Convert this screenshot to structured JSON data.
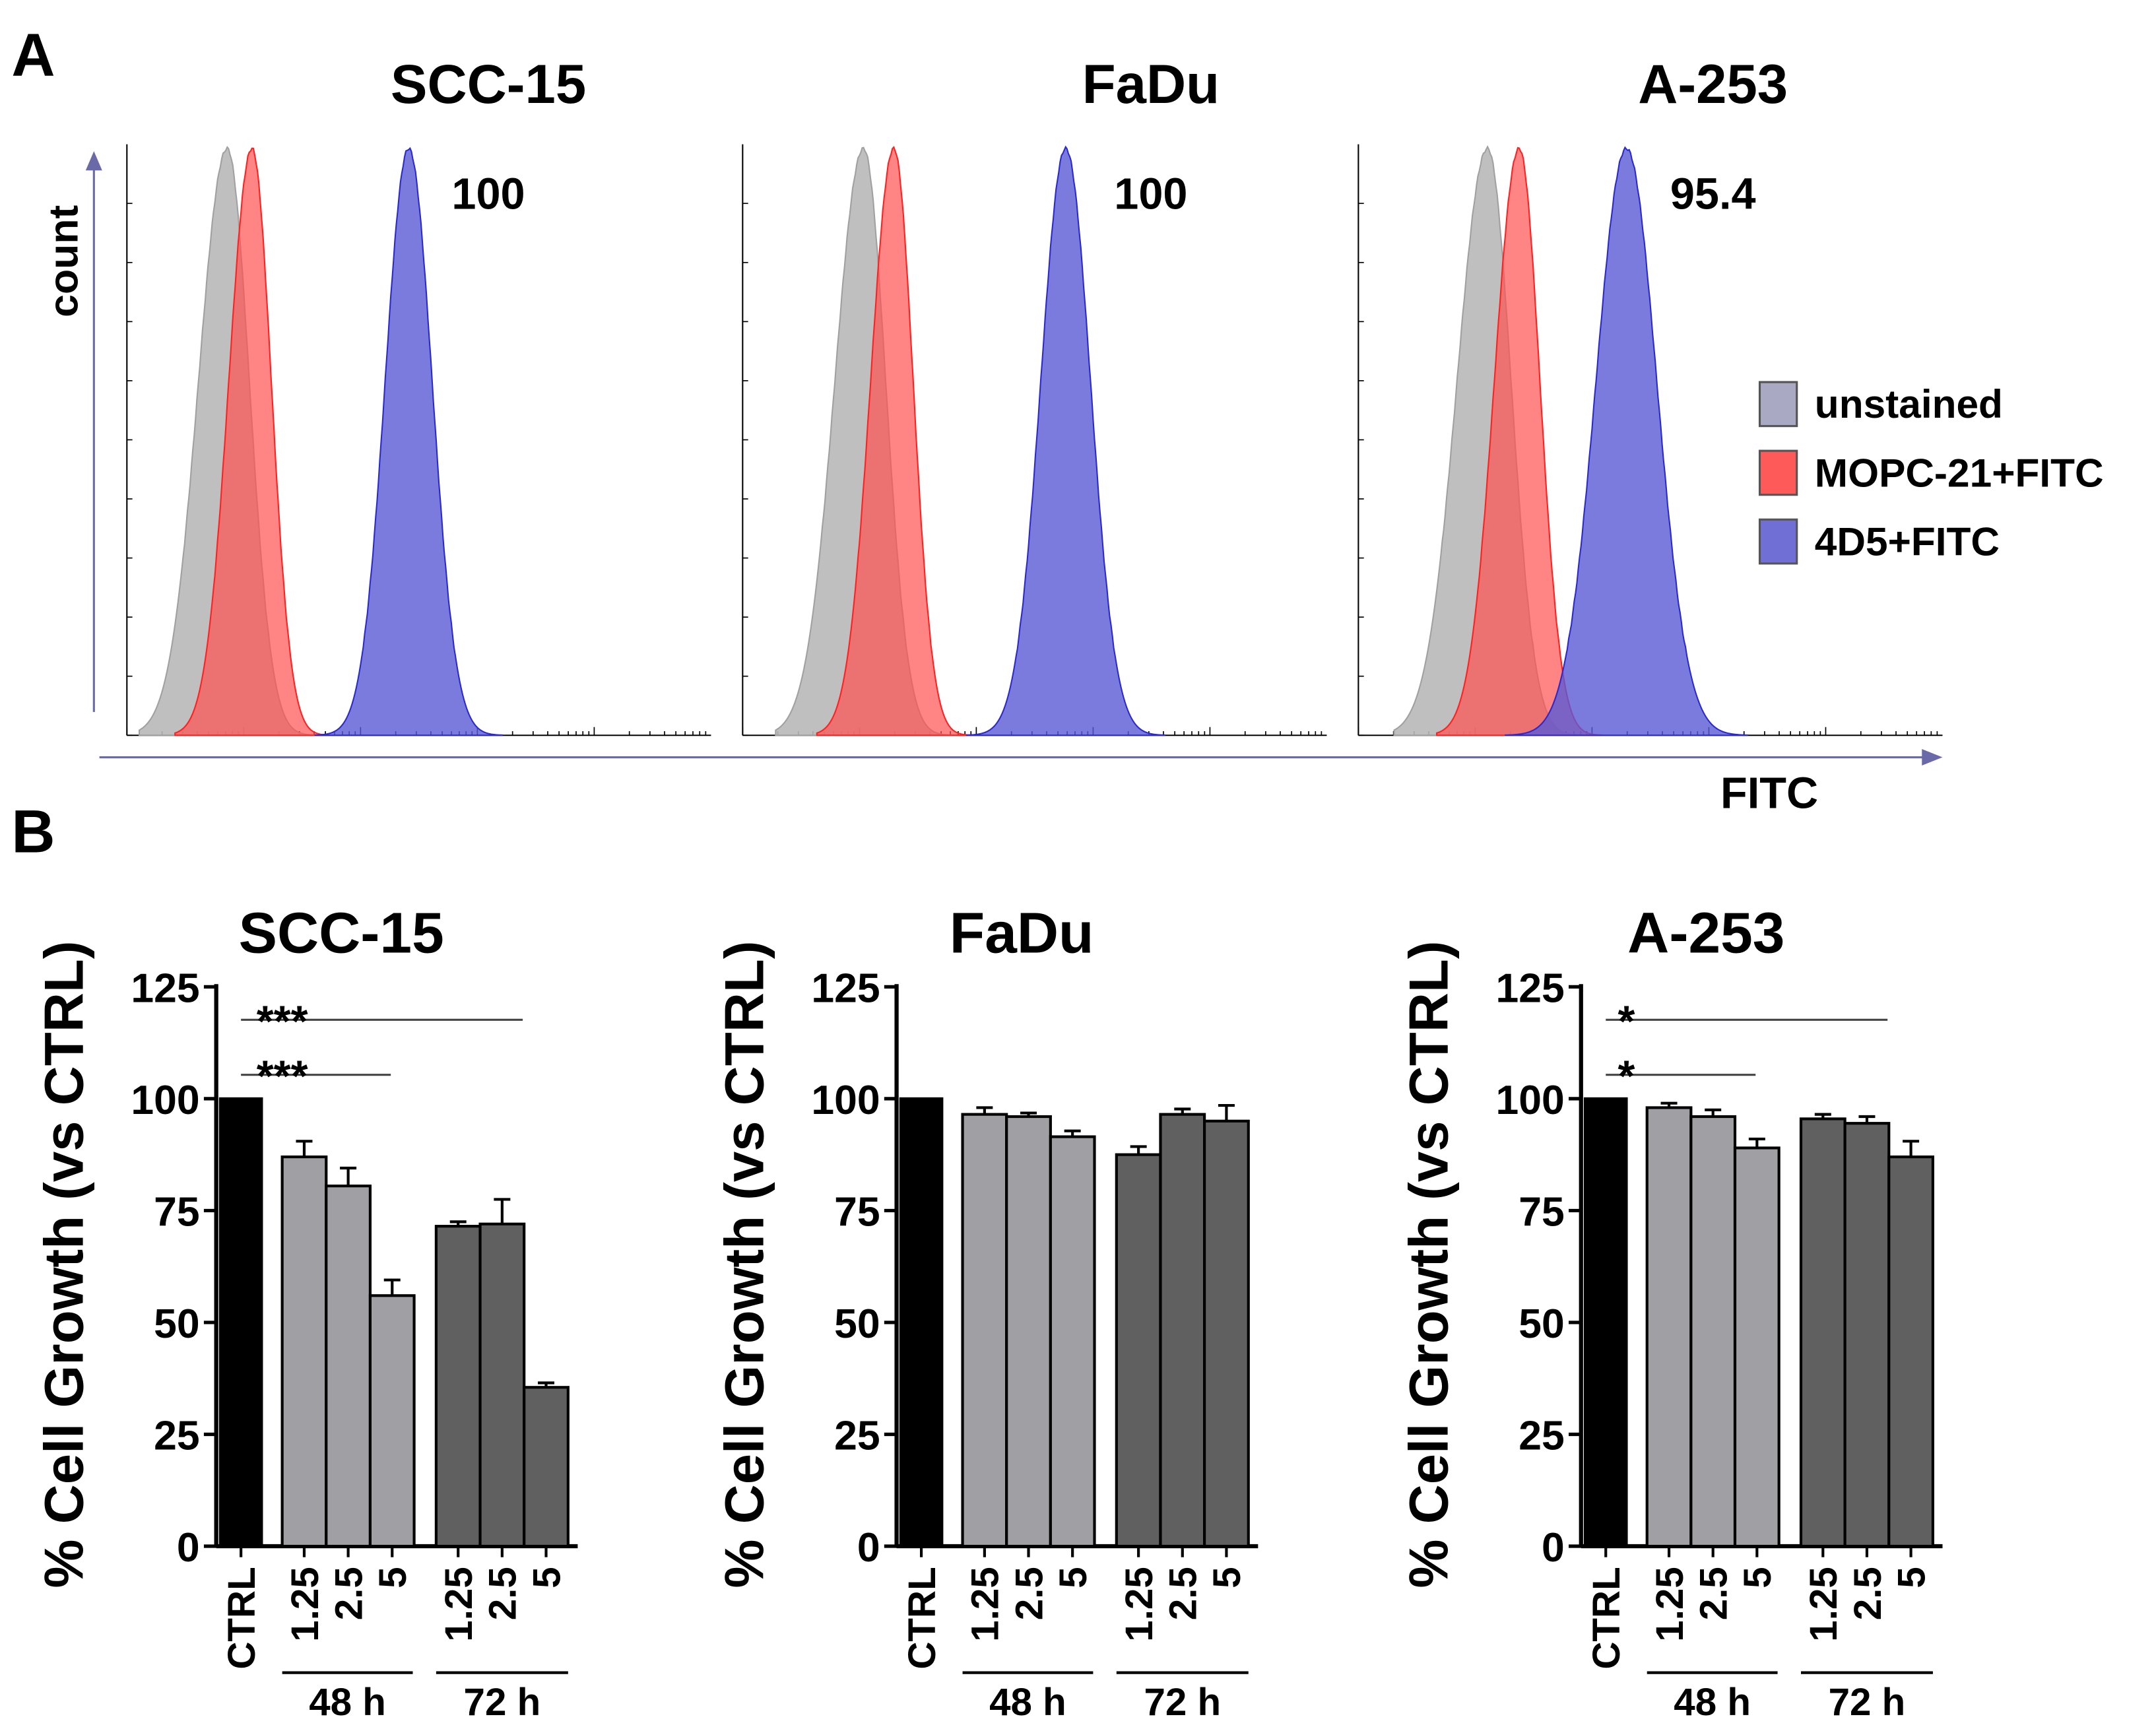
{
  "panel_a": {
    "label": "A",
    "y_axis_label": "count",
    "x_axis_label": "FITC",
    "legend": [
      {
        "label": "unstained",
        "color": "#a9a9c4"
      },
      {
        "label": "MOPC-21+FITC",
        "color": "#ff5a5a"
      },
      {
        "label": "4D5+FITC",
        "color": "#6f6fd6"
      }
    ],
    "panels": [
      {
        "title": "SCC-15",
        "percent_positive": "100"
      },
      {
        "title": "FaDu",
        "percent_positive": "100"
      },
      {
        "title": "A-253",
        "percent_positive": "95.4"
      }
    ]
  },
  "panel_b": {
    "label": "B"
  },
  "chart_data": [
    {
      "type": "bar",
      "title": "SCC-15",
      "ylabel": "% Cell Growth (vs CTRL)",
      "ylim": [
        0,
        125
      ],
      "yticks": [
        "0",
        "25",
        "50",
        "75",
        "100",
        "125"
      ],
      "categories": [
        "CTRL",
        "1.25",
        "2.5",
        "5",
        "1.25",
        "2.5",
        "5"
      ],
      "groups": [
        "48 h",
        "72 h"
      ],
      "values": [
        100,
        87,
        80.5,
        56,
        71.5,
        72,
        35.5
      ],
      "errors": [
        0,
        3.5,
        4,
        3.5,
        1,
        5.5,
        1
      ],
      "significance": [
        {
          "label": "***",
          "to": 6
        },
        {
          "label": "***",
          "to": 3
        }
      ]
    },
    {
      "type": "bar",
      "title": "FaDu",
      "ylabel": "% Cell Growth (vs CTRL)",
      "ylim": [
        0,
        125
      ],
      "yticks": [
        "0",
        "25",
        "50",
        "75",
        "100",
        "125"
      ],
      "categories": [
        "CTRL",
        "1.25",
        "2.5",
        "5",
        "1.25",
        "2.5",
        "5"
      ],
      "groups": [
        "48 h",
        "72 h"
      ],
      "values": [
        100,
        96.5,
        96,
        91.5,
        87.5,
        96.5,
        95
      ],
      "errors": [
        0,
        1.5,
        0.8,
        1.3,
        1.8,
        1.2,
        3.5
      ],
      "significance": []
    },
    {
      "type": "bar",
      "title": "A-253",
      "ylabel": "% Cell Growth (vs CTRL)",
      "ylim": [
        0,
        125
      ],
      "yticks": [
        "0",
        "25",
        "50",
        "75",
        "100",
        "125"
      ],
      "categories": [
        "CTRL",
        "1.25",
        "2.5",
        "5",
        "1.25",
        "2.5",
        "5"
      ],
      "groups": [
        "48 h",
        "72 h"
      ],
      "values": [
        100,
        98,
        96,
        89,
        95.5,
        94.5,
        87
      ],
      "errors": [
        0,
        1,
        1.5,
        2,
        1,
        1.5,
        3.5
      ],
      "significance": [
        {
          "label": "*",
          "to": 6
        },
        {
          "label": "*",
          "to": 3
        }
      ]
    }
  ],
  "colors": {
    "ctrl": "#000000",
    "h48": "#a0a0a4",
    "h72": "#606060",
    "axis_arrow": "#6a6aa8"
  }
}
